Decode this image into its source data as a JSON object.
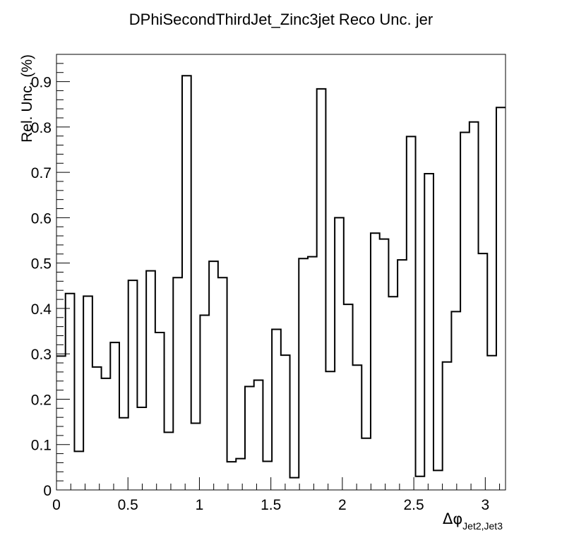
{
  "chart_data": {
    "type": "histogram-step",
    "title": "DPhiSecondThirdJet_Zinc3jet Reco Unc. jer",
    "ylabel": "Rel. Unc. (%)",
    "xlabel": {
      "symbol": "Δφ",
      "subscript": "Jet2,Jet3"
    },
    "xlim": [
      0,
      3.1416
    ],
    "ylim": [
      0,
      0.96
    ],
    "x_ticks": [
      "0",
      "0.5",
      "1",
      "1.5",
      "2",
      "2.5",
      "3"
    ],
    "x_tick_values": [
      0,
      0.5,
      1,
      1.5,
      2,
      2.5,
      3
    ],
    "y_ticks": [
      "0",
      "0.1",
      "0.2",
      "0.3",
      "0.4",
      "0.5",
      "0.6",
      "0.7",
      "0.8",
      "0.9"
    ],
    "y_tick_values": [
      0,
      0.1,
      0.2,
      0.3,
      0.4,
      0.5,
      0.6,
      0.7,
      0.8,
      0.9
    ],
    "bin_width": 0.0628,
    "values": [
      0.295,
      0.433,
      0.085,
      0.427,
      0.271,
      0.246,
      0.325,
      0.159,
      0.462,
      0.182,
      0.483,
      0.347,
      0.127,
      0.468,
      0.913,
      0.147,
      0.385,
      0.504,
      0.468,
      0.062,
      0.069,
      0.228,
      0.242,
      0.063,
      0.354,
      0.297,
      0.027,
      0.51,
      0.514,
      0.884,
      0.261,
      0.6,
      0.409,
      0.275,
      0.114,
      0.566,
      0.553,
      0.426,
      0.507,
      0.779,
      0.03,
      0.697,
      0.043,
      0.282,
      0.393,
      0.788,
      0.811,
      0.521,
      0.296,
      0.843
    ],
    "line_color": "#000000",
    "grid": false
  }
}
